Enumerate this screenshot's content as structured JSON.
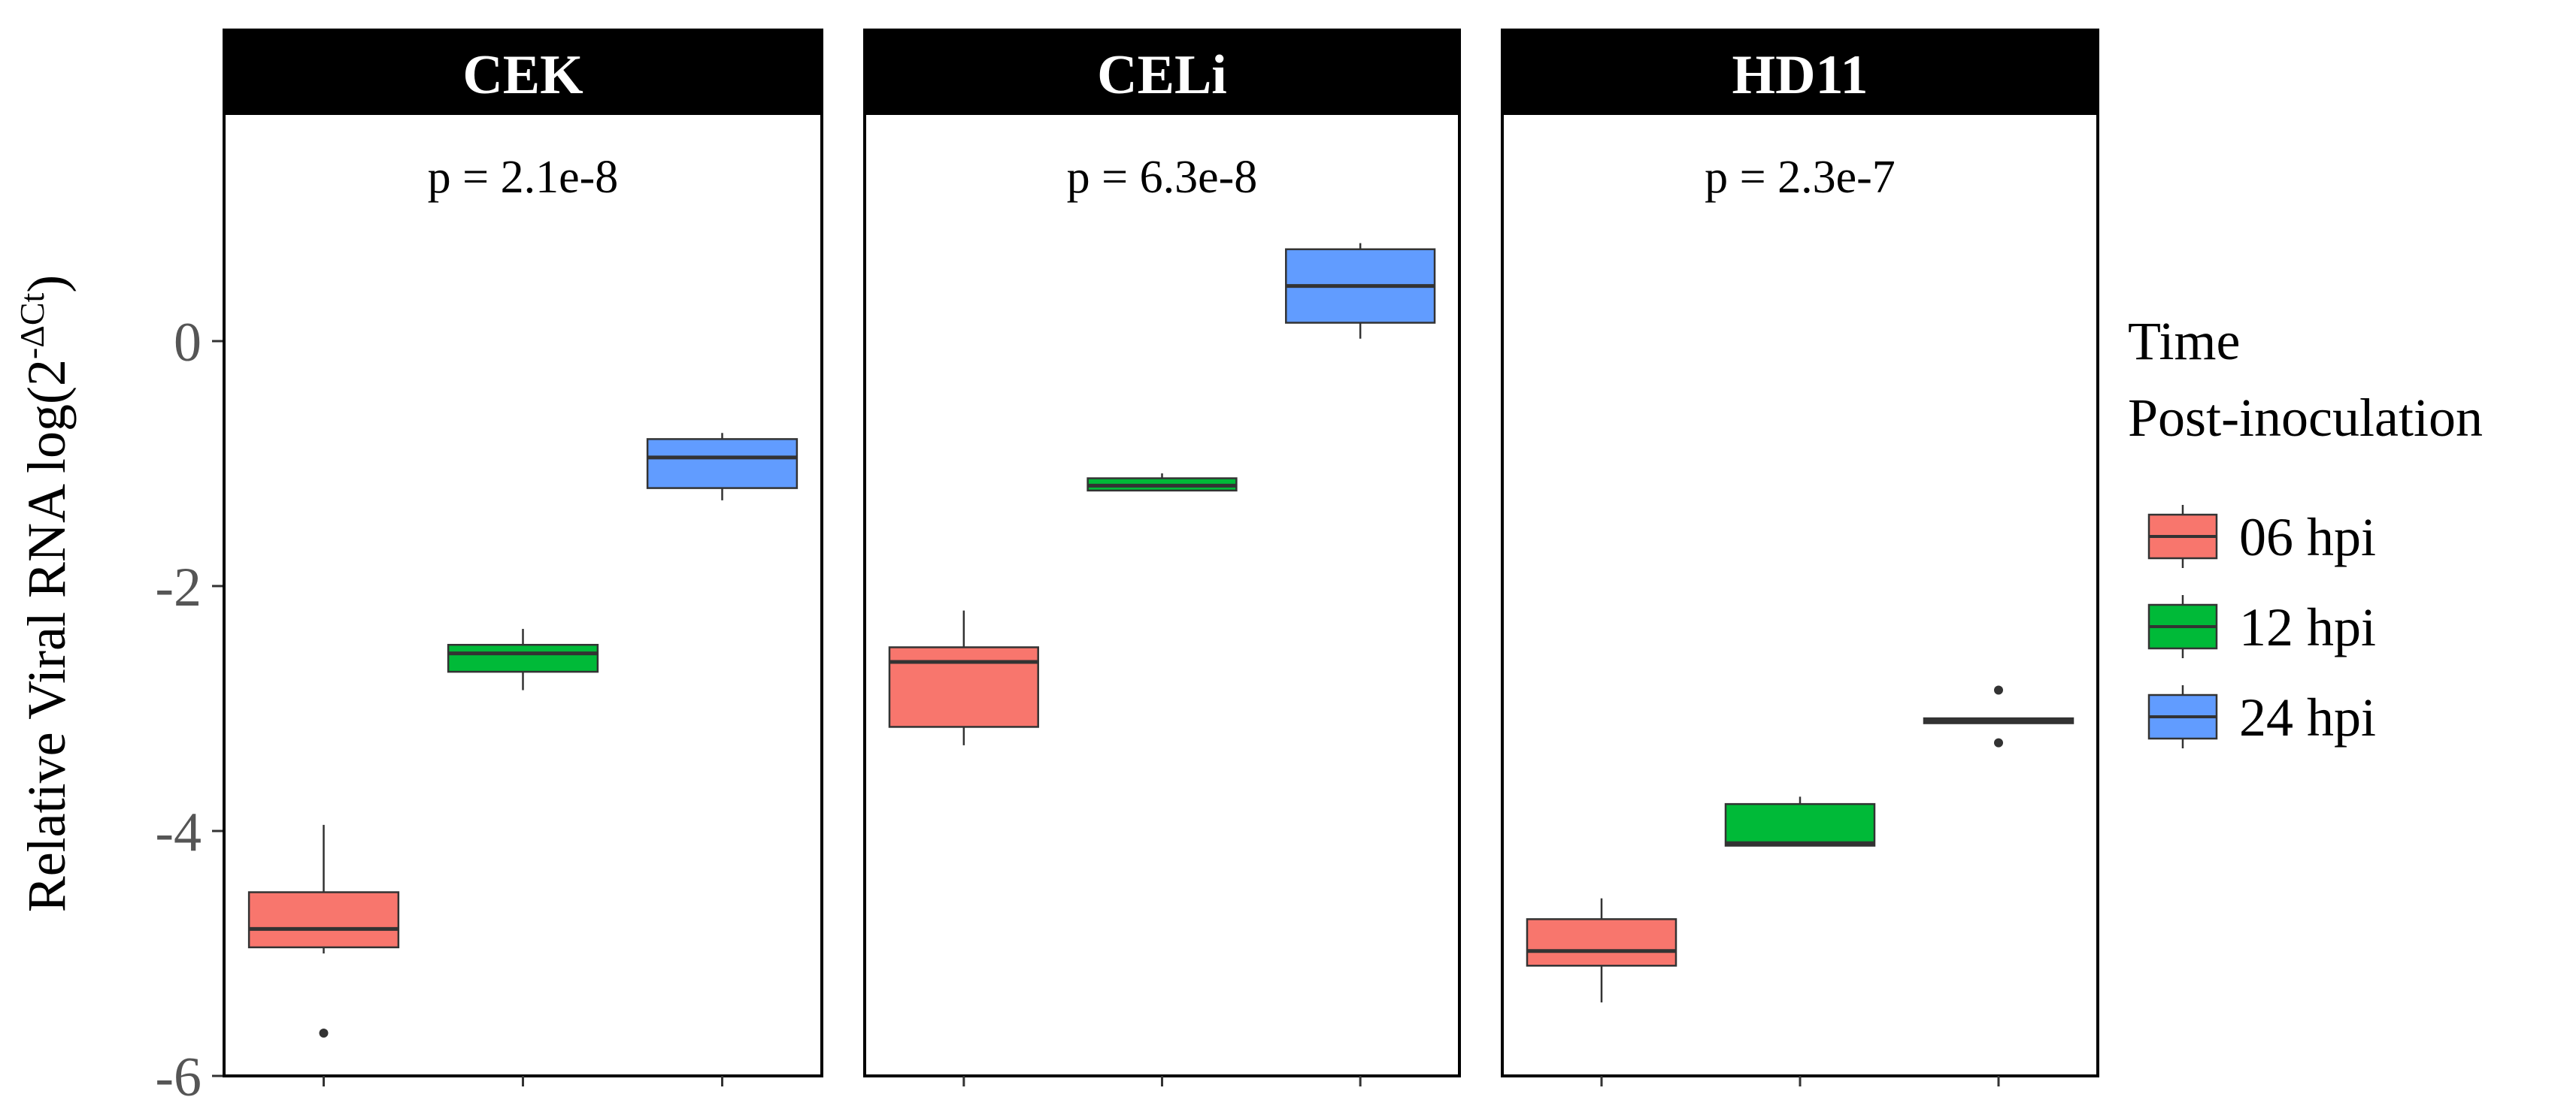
{
  "chart_data": {
    "type": "box",
    "ylabel_main": "Relative Viral RNA log(2",
    "ylabel_sup": "-ΔCt",
    "ylabel_close": ")",
    "ylim": [
      -6,
      1.5
    ],
    "yticks": [
      0,
      -2,
      -4,
      -6
    ],
    "ytick_labels": [
      "0",
      "-2",
      "-4",
      "-6"
    ],
    "legend": {
      "title_line1": "Time",
      "title_line2": "Post-inoculation",
      "position": "right",
      "entries": [
        {
          "label": "06 hpi",
          "color": "#F8766D"
        },
        {
          "label": "12 hpi",
          "color": "#00BA38"
        },
        {
          "label": "24 hpi",
          "color": "#619CFF"
        }
      ]
    },
    "panels": [
      {
        "strip": "CEK",
        "annotation": "p = 2.1e-8",
        "boxes": [
          {
            "group": "06 hpi",
            "lower_whisker": -5.0,
            "q1": -4.95,
            "median": -4.8,
            "q3": -4.5,
            "upper_whisker": -3.95,
            "outliers": [
              -5.65
            ]
          },
          {
            "group": "12 hpi",
            "lower_whisker": -2.85,
            "q1": -2.7,
            "median": -2.55,
            "q3": -2.48,
            "upper_whisker": -2.35,
            "outliers": []
          },
          {
            "group": "24 hpi",
            "lower_whisker": -1.3,
            "q1": -1.2,
            "median": -0.95,
            "q3": -0.8,
            "upper_whisker": -0.75,
            "outliers": []
          }
        ]
      },
      {
        "strip": "CELi",
        "annotation": "p = 6.3e-8",
        "boxes": [
          {
            "group": "06 hpi",
            "lower_whisker": -3.3,
            "q1": -3.15,
            "median": -2.62,
            "q3": -2.5,
            "upper_whisker": -2.2,
            "outliers": []
          },
          {
            "group": "12 hpi",
            "lower_whisker": -1.22,
            "q1": -1.22,
            "median": -1.18,
            "q3": -1.12,
            "upper_whisker": -1.08,
            "outliers": []
          },
          {
            "group": "24 hpi",
            "lower_whisker": 0.02,
            "q1": 0.15,
            "median": 0.45,
            "q3": 0.75,
            "upper_whisker": 0.8,
            "outliers": []
          }
        ]
      },
      {
        "strip": "HD11",
        "annotation": "p = 2.3e-7",
        "boxes": [
          {
            "group": "06 hpi",
            "lower_whisker": -5.4,
            "q1": -5.1,
            "median": -4.98,
            "q3": -4.72,
            "upper_whisker": -4.55,
            "outliers": []
          },
          {
            "group": "12 hpi",
            "lower_whisker": -4.12,
            "q1": -4.12,
            "median": -4.1,
            "q3": -3.78,
            "upper_whisker": -3.72,
            "outliers": []
          },
          {
            "group": "24 hpi",
            "lower_whisker": -3.12,
            "q1": -3.12,
            "median": -3.1,
            "q3": -3.08,
            "upper_whisker": -3.08,
            "outliers": [
              -2.85,
              -3.28
            ]
          }
        ]
      }
    ]
  }
}
